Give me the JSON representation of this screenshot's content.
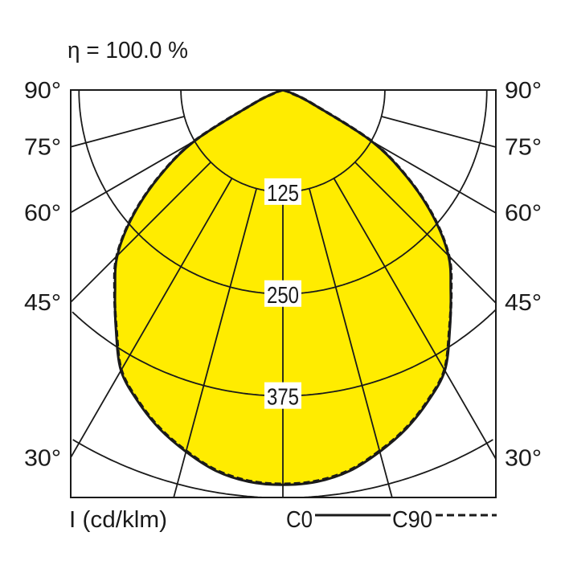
{
  "chart_data": {
    "type": "polar",
    "title": "η = 100.0 %",
    "unit_label": "I (cd/klm)",
    "radial_ticks": [
      125,
      250,
      375
    ],
    "radial_max": 500,
    "angle_labels": [
      "90°",
      "75°",
      "60°",
      "45°",
      "30°"
    ],
    "angle_values": [
      90,
      75,
      60,
      45,
      30
    ],
    "grid_angle_step": 15,
    "fill_color": "#FFEC00",
    "line_color": "#1a1a1a",
    "legend": [
      {
        "name": "C0",
        "style": "solid"
      },
      {
        "name": "C90",
        "style": "dashed"
      }
    ],
    "series": [
      {
        "name": "C0",
        "angles": [
          0,
          5,
          10,
          15,
          20,
          25,
          30,
          35,
          40,
          45,
          50,
          55,
          60,
          65,
          70,
          75,
          80,
          90
        ],
        "values": [
          484,
          482,
          474,
          459,
          442,
          421,
          397,
          357,
          320,
          287,
          240,
          185,
          125,
          40,
          12,
          3,
          0,
          0
        ]
      },
      {
        "name": "C90",
        "angles": [
          0,
          5,
          10,
          15,
          20,
          25,
          30,
          35,
          40,
          45,
          50,
          55,
          60,
          65,
          70,
          75,
          80,
          90
        ],
        "values": [
          483,
          481,
          473,
          458,
          441,
          420,
          396,
          356,
          321,
          288,
          241,
          186,
          126,
          41,
          12,
          3,
          0,
          0
        ]
      }
    ]
  }
}
